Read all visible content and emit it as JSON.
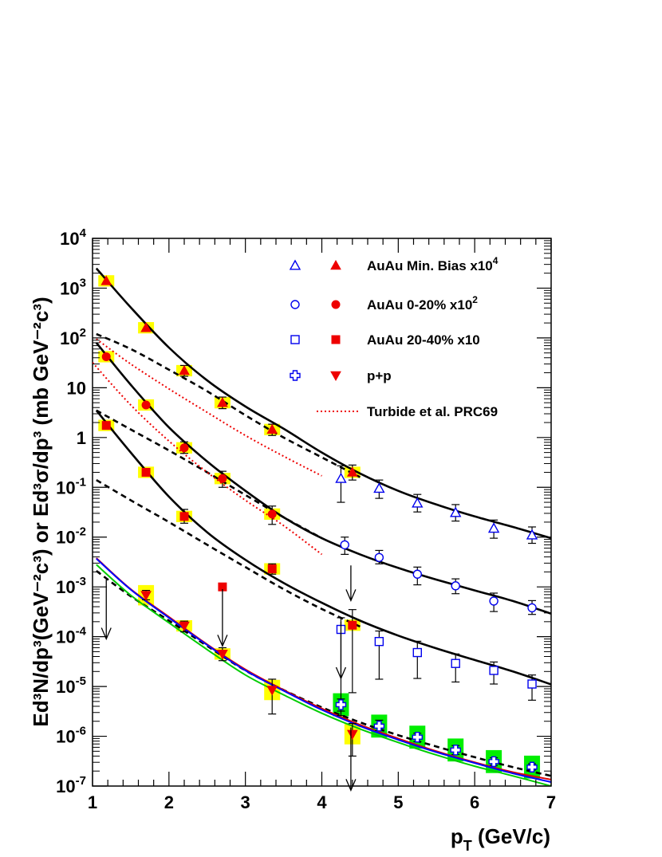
{
  "chart_data": {
    "type": "scatter",
    "xlabel": "p_T (GeV/c)",
    "ylabel": "Ed³N/dp³(GeV⁻²c³) or Ed³σ/dp³ (mb GeV⁻²c³)",
    "xlim": [
      1,
      7
    ],
    "ylim": [
      1e-07,
      10000
    ],
    "yscale": "log",
    "x_ticks": [
      "1",
      "2",
      "3",
      "4",
      "5",
      "6",
      "7"
    ],
    "y_ticks": [
      "10^-7",
      "10^-6",
      "10^-5",
      "10^-4",
      "10^-3",
      "10^-2",
      "10^-1",
      "1",
      "10",
      "10^2",
      "10^3",
      "10^4"
    ],
    "grid": false,
    "legend_position": "top-right",
    "legend": [
      {
        "label": "AuAu Min. Bias x10",
        "sup": "4",
        "open_marker": "open-triangle",
        "filled_marker": "filled-triangle"
      },
      {
        "label": "AuAu 0-20% x10",
        "sup": "2",
        "open_marker": "open-circle",
        "filled_marker": "filled-circle"
      },
      {
        "label": "AuAu 20-40% x10",
        "sup": "",
        "open_marker": "open-square",
        "filled_marker": "filled-square"
      },
      {
        "label": "p+p",
        "sup": "",
        "open_marker": "open-cross",
        "filled_marker": "filled-inverted-triangle"
      },
      {
        "label": "Turbide et al. PRC69",
        "sup": "",
        "line_style": "red-dotted"
      }
    ],
    "colors": {
      "blue": "#0000ee",
      "red": "#ee0000",
      "yellow": "#ffff00",
      "green": "#00ee00",
      "black": "#000000"
    },
    "series": [
      {
        "key": "mb_filled",
        "marker": "filled-triangle",
        "color": "#ee0000",
        "sys": "yellow",
        "points": [
          [
            1.18,
            1400,
            0,
            0
          ],
          [
            1.7,
            160,
            0,
            0
          ],
          [
            2.2,
            22,
            17,
            28
          ],
          [
            2.7,
            5,
            3.8,
            6.5
          ],
          [
            3.35,
            1.45,
            1.1,
            1.85
          ],
          [
            4.4,
            0.2,
            0.14,
            0.28
          ]
        ]
      },
      {
        "key": "mb_open",
        "marker": "open-triangle",
        "color": "#0000ee",
        "points": [
          [
            4.25,
            0.15,
            0.05,
            0.27
          ],
          [
            4.75,
            0.095,
            0.06,
            0.14
          ],
          [
            5.25,
            0.048,
            0.032,
            0.072
          ],
          [
            5.75,
            0.031,
            0.021,
            0.045
          ],
          [
            6.25,
            0.015,
            0.0095,
            0.022
          ],
          [
            6.75,
            0.011,
            0.0075,
            0.016
          ]
        ]
      },
      {
        "key": "c020_filled",
        "marker": "filled-circle",
        "color": "#ee0000",
        "sys": "yellow",
        "points": [
          [
            1.18,
            42,
            0,
            0
          ],
          [
            1.7,
            4.5,
            0,
            0
          ],
          [
            2.2,
            0.62,
            0.48,
            0.82
          ],
          [
            2.7,
            0.15,
            0.1,
            0.21
          ],
          [
            3.35,
            0.029,
            0.018,
            0.042
          ]
        ]
      },
      {
        "key": "c020_open",
        "marker": "open-circle",
        "color": "#0000ee",
        "points": [
          [
            4.3,
            0.007,
            0.0045,
            0.01
          ],
          [
            4.75,
            0.0039,
            0.0029,
            0.0054
          ],
          [
            5.25,
            0.0018,
            0.0011,
            0.0025
          ],
          [
            5.75,
            0.00105,
            0.00073,
            0.00145
          ],
          [
            6.25,
            0.00052,
            0.00032,
            0.00075
          ],
          [
            6.75,
            0.00038,
            0.00028,
            0.00053
          ]
        ]
      },
      {
        "key": "c2040_filled",
        "marker": "filled-square",
        "color": "#ee0000",
        "sys": "yellow",
        "points": [
          [
            1.18,
            1.75,
            0,
            0
          ],
          [
            1.7,
            0.2,
            0,
            0
          ],
          [
            2.2,
            0.026,
            0.019,
            0.036
          ],
          [
            3.35,
            0.0023,
            0.0018,
            0.0029
          ],
          [
            4.4,
            0.00017,
            7.5e-06,
            0.00035
          ]
        ]
      },
      {
        "key": "c2040_filled_nosys",
        "marker": "filled-square",
        "color": "#ee0000",
        "points": [
          [
            2.7,
            0.001,
            0,
            0
          ]
        ]
      },
      {
        "key": "c2040_open",
        "marker": "open-square",
        "color": "#0000ee",
        "points": [
          [
            4.25,
            0.00014,
            2.6e-06,
            0.00024
          ],
          [
            4.75,
            8e-05,
            1.4e-05,
            0.00013
          ],
          [
            5.25,
            4.8e-05,
            1.45e-05,
            8.1e-05
          ],
          [
            5.75,
            2.9e-05,
            1.23e-05,
            4.5e-05
          ],
          [
            6.25,
            2.1e-05,
            1.12e-05,
            3.1e-05
          ],
          [
            6.75,
            1.12e-05,
            5.3e-06,
            1.7e-05
          ]
        ]
      },
      {
        "key": "pp_filled",
        "marker": "filled-inverted-triangle",
        "color": "#ee0000",
        "sys": "yellow",
        "points": [
          [
            1.7,
            0.00068,
            0.00055,
            0.00085
          ],
          [
            2.2,
            0.000165,
            0.000125,
            0.000205
          ],
          [
            2.7,
            4.5e-05,
            3.3e-05,
            6e-05
          ],
          [
            3.35,
            8.5e-06,
            2.8e-06,
            1.4e-05
          ],
          [
            4.4,
            1.1e-06,
            4e-07,
            1.8e-06
          ]
        ]
      },
      {
        "key": "pp_open",
        "marker": "open-cross",
        "color": "#0000ee",
        "sys": "green",
        "points": [
          [
            4.25,
            4.3e-06,
            3.2e-06,
            5.6e-06
          ],
          [
            4.75,
            1.6e-06,
            1.3e-06,
            2.1e-06
          ],
          [
            5.25,
            9.6e-07,
            7.8e-07,
            1.15e-06
          ],
          [
            5.75,
            5.3e-07,
            4.3e-07,
            6.5e-07
          ],
          [
            6.25,
            3.1e-07,
            2.6e-07,
            3.7e-07
          ],
          [
            6.75,
            2.4e-07,
            2.1e-07,
            2.8e-07
          ]
        ]
      }
    ],
    "upper_limits": [
      {
        "x": 1.18,
        "from": 0.0014,
        "to": 9e-05
      },
      {
        "x": 2.7,
        "from": 0.0009,
        "to": 6.5e-05
      },
      {
        "x": 4.25,
        "from": 0.0002,
        "to": 1.45e-05
      },
      {
        "x": 4.38,
        "from": 0.0027,
        "to": 0.00053
      },
      {
        "x": 4.38,
        "from": 1.5e-06,
        "to": 8.2e-08
      }
    ],
    "curves": [
      {
        "name": "mb_fit",
        "color": "#000000",
        "style": "solid",
        "points": [
          [
            1.05,
            2500
          ],
          [
            1.5,
            410
          ],
          [
            2,
            64
          ],
          [
            2.5,
            14
          ],
          [
            3,
            4.2
          ],
          [
            3.5,
            1.5
          ],
          [
            4,
            0.5
          ],
          [
            4.5,
            0.19
          ],
          [
            5,
            0.085
          ],
          [
            5.5,
            0.045
          ],
          [
            6,
            0.026
          ],
          [
            6.5,
            0.016
          ],
          [
            7,
            0.0095
          ]
        ]
      },
      {
        "name": "c020_fit",
        "color": "#000000",
        "style": "solid",
        "points": [
          [
            1.05,
            80
          ],
          [
            1.5,
            11.5
          ],
          [
            2,
            1.6
          ],
          [
            2.5,
            0.33
          ],
          [
            3,
            0.085
          ],
          [
            3.5,
            0.025
          ],
          [
            4,
            0.0095
          ],
          [
            4.5,
            0.0045
          ],
          [
            5,
            0.0024
          ],
          [
            5.5,
            0.0014
          ],
          [
            6,
            0.00085
          ],
          [
            6.5,
            0.00052
          ],
          [
            7,
            0.00029
          ]
        ]
      },
      {
        "name": "c2040_fit",
        "color": "#000000",
        "style": "solid",
        "points": [
          [
            1.05,
            3.5
          ],
          [
            1.5,
            0.5
          ],
          [
            2,
            0.065
          ],
          [
            2.5,
            0.0125
          ],
          [
            3,
            0.0035
          ],
          [
            3.5,
            0.0012
          ],
          [
            4,
            0.00048
          ],
          [
            4.5,
            0.00021
          ],
          [
            5,
            0.000105
          ],
          [
            5.5,
            5.8e-05
          ],
          [
            6,
            3.4e-05
          ],
          [
            6.5,
            2e-05
          ],
          [
            7,
            1.1e-05
          ]
        ]
      },
      {
        "name": "mb_dashed",
        "color": "#000000",
        "style": "dashed",
        "points": [
          [
            1.05,
            120
          ],
          [
            1.5,
            60
          ],
          [
            2,
            23
          ],
          [
            2.5,
            8.5
          ],
          [
            3,
            2.8
          ],
          [
            3.5,
            1.0
          ],
          [
            4,
            0.4
          ],
          [
            4.5,
            0.16
          ]
        ]
      },
      {
        "name": "c020_dashed",
        "color": "#000000",
        "style": "dashed",
        "points": [
          [
            1.05,
            3.5
          ],
          [
            1.5,
            1.45
          ],
          [
            2,
            0.55
          ],
          [
            2.5,
            0.2
          ],
          [
            3,
            0.07
          ],
          [
            3.5,
            0.025
          ],
          [
            4,
            0.0095
          ]
        ]
      },
      {
        "name": "c2040_dashed",
        "color": "#000000",
        "style": "dashed",
        "points": [
          [
            1.05,
            0.14
          ],
          [
            1.5,
            0.055
          ],
          [
            2,
            0.02
          ],
          [
            2.5,
            0.007
          ],
          [
            3,
            0.0025
          ],
          [
            3.5,
            0.0009
          ],
          [
            4,
            0.00036
          ],
          [
            4.5,
            0.00016
          ]
        ]
      },
      {
        "name": "pp_dashed",
        "color": "#000000",
        "style": "dashed",
        "points": [
          [
            1.05,
            0.0021
          ],
          [
            1.5,
            0.00065
          ],
          [
            2,
            0.00021
          ],
          [
            2.5,
            6.5e-05
          ],
          [
            3,
            2.1e-05
          ],
          [
            3.5,
            8.5e-06
          ],
          [
            4,
            3.8e-06
          ],
          [
            4.5,
            1.9e-06
          ],
          [
            5,
            1.05e-06
          ],
          [
            5.5,
            6.2e-07
          ],
          [
            6,
            3.8e-07
          ],
          [
            6.5,
            2.4e-07
          ],
          [
            7,
            1.6e-07
          ]
        ]
      },
      {
        "name": "pp_red",
        "color": "#dd0000",
        "style": "solid",
        "points": [
          [
            1.05,
            0.0038
          ],
          [
            1.5,
            0.0009
          ],
          [
            2,
            0.00025
          ],
          [
            2.5,
            7e-05
          ],
          [
            3,
            2.2e-05
          ],
          [
            3.5,
            8.5e-06
          ],
          [
            4,
            3.6e-06
          ],
          [
            4.5,
            1.7e-06
          ],
          [
            5,
            9e-07
          ],
          [
            5.5,
            5e-07
          ],
          [
            6,
            3e-07
          ],
          [
            6.5,
            1.9e-07
          ],
          [
            7,
            1.35e-07
          ]
        ]
      },
      {
        "name": "pp_blue",
        "color": "#0000ff",
        "style": "solid",
        "points": [
          [
            1.05,
            0.0037
          ],
          [
            1.5,
            0.00088
          ],
          [
            2,
            0.00024
          ],
          [
            2.5,
            6.8e-05
          ],
          [
            3,
            2.1e-05
          ],
          [
            3.5,
            8.2e-06
          ],
          [
            4,
            3.4e-06
          ],
          [
            4.5,
            1.6e-06
          ],
          [
            5,
            8.5e-07
          ],
          [
            5.5,
            4.8e-07
          ],
          [
            6,
            2.9e-07
          ],
          [
            6.5,
            1.8e-07
          ],
          [
            7,
            1.2e-07
          ]
        ]
      },
      {
        "name": "pp_green",
        "color": "#00cc00",
        "style": "solid",
        "points": [
          [
            1.05,
            0.0028
          ],
          [
            1.5,
            0.00068
          ],
          [
            2,
            0.00019
          ],
          [
            2.5,
            5.5e-05
          ],
          [
            3,
            1.7e-05
          ],
          [
            3.5,
            6.8e-06
          ],
          [
            4,
            2.9e-06
          ],
          [
            4.5,
            1.4e-06
          ],
          [
            5,
            7.5e-07
          ],
          [
            5.5,
            4.2e-07
          ],
          [
            6,
            2.5e-07
          ],
          [
            6.5,
            1.6e-07
          ],
          [
            7,
            1e-07
          ]
        ]
      },
      {
        "name": "turbide_mb",
        "color": "#ee0000",
        "style": "dotted",
        "points": [
          [
            1.05,
            95
          ],
          [
            1.5,
            30
          ],
          [
            2,
            9.5
          ],
          [
            2.5,
            3.2
          ],
          [
            3,
            1.1
          ],
          [
            3.5,
            0.42
          ],
          [
            4,
            0.17
          ]
        ]
      },
      {
        "name": "turbide_c020",
        "color": "#ee0000",
        "style": "dotted",
        "points": [
          [
            1.0,
            32
          ],
          [
            1.5,
            4.5
          ],
          [
            2,
            0.85
          ],
          [
            2.5,
            0.2
          ],
          [
            3,
            0.055
          ],
          [
            3.5,
            0.017
          ],
          [
            4,
            0.0045
          ]
        ]
      }
    ]
  }
}
